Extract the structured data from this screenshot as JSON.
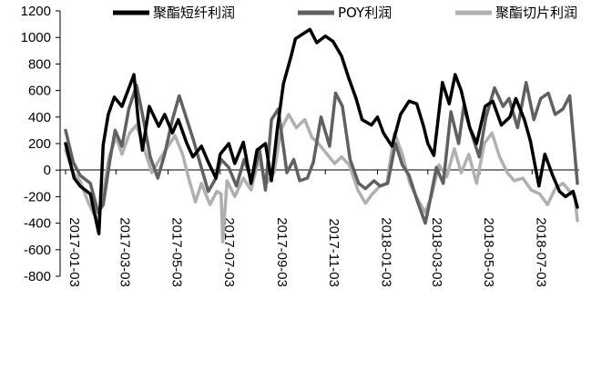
{
  "chart_data": {
    "type": "line",
    "title": "",
    "xlabel": "",
    "ylabel": "",
    "ylim": [
      -800,
      1200
    ],
    "yticks": [
      -800,
      -600,
      -400,
      -200,
      0,
      200,
      400,
      600,
      800,
      1000,
      1200
    ],
    "x_tick_labels": [
      "2017-01-03",
      "2017-03-03",
      "2017-05-03",
      "2017-07-03",
      "2017-09-03",
      "2017-11-03",
      "2018-01-03",
      "2018-03-03",
      "2018-05-03",
      "2018-07-03"
    ],
    "x_range": [
      "2017-01-03",
      "2018-08-25"
    ],
    "grid": false,
    "legend_position": "top",
    "series": [
      {
        "name": "聚酯短纤利润",
        "color": "#000000",
        "x": [
          "2017-01-03",
          "2017-01-13",
          "2017-01-20",
          "2017-02-01",
          "2017-02-11",
          "2017-02-16",
          "2017-02-22",
          "2017-03-01",
          "2017-03-10",
          "2017-03-17",
          "2017-03-24",
          "2017-03-29",
          "2017-04-03",
          "2017-04-11",
          "2017-04-22",
          "2017-04-29",
          "2017-05-08",
          "2017-05-15",
          "2017-05-25",
          "2017-06-01",
          "2017-06-11",
          "2017-06-19",
          "2017-06-28",
          "2017-07-03",
          "2017-07-13",
          "2017-07-20",
          "2017-07-30",
          "2017-08-08",
          "2017-08-15",
          "2017-08-25",
          "2017-09-01",
          "2017-09-08",
          "2017-09-15",
          "2017-09-24",
          "2017-09-29",
          "2017-10-06",
          "2017-10-16",
          "2017-10-24",
          "2017-11-03",
          "2017-11-12",
          "2017-11-22",
          "2017-11-30",
          "2017-12-09",
          "2017-12-16",
          "2017-12-27",
          "2018-01-03",
          "2018-01-10",
          "2018-01-20",
          "2018-01-30",
          "2018-02-09",
          "2018-02-18",
          "2018-02-26",
          "2018-03-03",
          "2018-03-10",
          "2018-03-20",
          "2018-03-28",
          "2018-04-04",
          "2018-04-11",
          "2018-04-21",
          "2018-04-29",
          "2018-05-09",
          "2018-05-18",
          "2018-05-28",
          "2018-06-07",
          "2018-06-14",
          "2018-06-24",
          "2018-07-01",
          "2018-07-11",
          "2018-07-18",
          "2018-07-27",
          "2018-08-04",
          "2018-08-11",
          "2018-08-20",
          "2018-08-25"
        ],
        "values": [
          200,
          -60,
          -120,
          -180,
          -480,
          190,
          420,
          550,
          480,
          600,
          720,
          380,
          150,
          480,
          330,
          420,
          280,
          380,
          200,
          100,
          180,
          60,
          -60,
          120,
          200,
          50,
          210,
          -100,
          150,
          200,
          -80,
          320,
          650,
          860,
          990,
          1020,
          1060,
          960,
          1010,
          970,
          860,
          700,
          540,
          380,
          340,
          400,
          280,
          180,
          420,
          520,
          500,
          330,
          200,
          110,
          660,
          500,
          720,
          600,
          320,
          200,
          480,
          520,
          340,
          400,
          540,
          380,
          220,
          -120,
          120,
          -40,
          -160,
          -200,
          -160,
          -280
        ]
      },
      {
        "name": "POY利润",
        "color": "#606060",
        "x": [
          "2017-01-03",
          "2017-01-12",
          "2017-01-20",
          "2017-02-01",
          "2017-02-10",
          "2017-02-16",
          "2017-02-24",
          "2017-03-02",
          "2017-03-10",
          "2017-03-18",
          "2017-03-27",
          "2017-04-03",
          "2017-04-12",
          "2017-04-21",
          "2017-04-29",
          "2017-05-08",
          "2017-05-16",
          "2017-05-24",
          "2017-06-02",
          "2017-06-10",
          "2017-06-19",
          "2017-06-28",
          "2017-07-04",
          "2017-07-13",
          "2017-07-22",
          "2017-07-31",
          "2017-08-09",
          "2017-08-18",
          "2017-08-25",
          "2017-09-01",
          "2017-09-09",
          "2017-09-19",
          "2017-09-27",
          "2017-10-04",
          "2017-10-13",
          "2017-10-20",
          "2017-10-29",
          "2017-11-08",
          "2017-11-15",
          "2017-11-23",
          "2017-12-02",
          "2017-12-12",
          "2017-12-20",
          "2017-12-30",
          "2018-01-06",
          "2018-01-15",
          "2018-01-24",
          "2018-02-01",
          "2018-02-09",
          "2018-02-18",
          "2018-02-28",
          "2018-03-04",
          "2018-03-13",
          "2018-03-21",
          "2018-03-30",
          "2018-04-08",
          "2018-04-14",
          "2018-04-22",
          "2018-05-02",
          "2018-05-10",
          "2018-05-20",
          "2018-05-30",
          "2018-06-06",
          "2018-06-16",
          "2018-06-26",
          "2018-07-05",
          "2018-07-13",
          "2018-07-22",
          "2018-07-30",
          "2018-08-08",
          "2018-08-16",
          "2018-08-21",
          "2018-08-25"
        ],
        "values": [
          300,
          60,
          -40,
          -100,
          -320,
          -260,
          80,
          300,
          180,
          460,
          640,
          420,
          100,
          -60,
          120,
          380,
          560,
          400,
          220,
          40,
          -160,
          -60,
          80,
          20,
          -120,
          80,
          -80,
          150,
          -150,
          380,
          460,
          -20,
          80,
          -80,
          -60,
          60,
          400,
          180,
          580,
          480,
          80,
          -100,
          -140,
          -80,
          -120,
          -100,
          200,
          40,
          -40,
          -220,
          -400,
          -280,
          20,
          -100,
          440,
          200,
          480,
          300,
          100,
          400,
          620,
          480,
          540,
          320,
          660,
          380,
          540,
          580,
          420,
          460,
          560,
          200,
          -100
        ]
      },
      {
        "name": "聚酯切片利润",
        "color": "#b0b0b0",
        "x": [
          "2017-01-03",
          "2017-01-12",
          "2017-01-20",
          "2017-01-30",
          "2017-02-09",
          "2017-02-16",
          "2017-02-23",
          "2017-03-03",
          "2017-03-10",
          "2017-03-19",
          "2017-03-27",
          "2017-04-04",
          "2017-04-14",
          "2017-04-23",
          "2017-05-03",
          "2017-05-11",
          "2017-05-20",
          "2017-05-27",
          "2017-06-04",
          "2017-06-11",
          "2017-06-21",
          "2017-06-29",
          "2017-07-04",
          "2017-07-06",
          "2017-07-11",
          "2017-07-20",
          "2017-07-30",
          "2017-08-08",
          "2017-08-17",
          "2017-08-26",
          "2017-09-04",
          "2017-09-12",
          "2017-09-21",
          "2017-09-30",
          "2017-10-10",
          "2017-10-18",
          "2017-10-26",
          "2017-11-05",
          "2017-11-14",
          "2017-11-22",
          "2017-12-01",
          "2017-12-11",
          "2017-12-20",
          "2017-12-28",
          "2018-01-06",
          "2018-01-14",
          "2018-01-23",
          "2018-02-01",
          "2018-02-10",
          "2018-02-19",
          "2018-02-28",
          "2018-03-07",
          "2018-03-16",
          "2018-03-25",
          "2018-04-03",
          "2018-04-11",
          "2018-04-20",
          "2018-04-29",
          "2018-05-08",
          "2018-05-17",
          "2018-05-26",
          "2018-06-04",
          "2018-06-12",
          "2018-06-22",
          "2018-07-02",
          "2018-07-12",
          "2018-07-21",
          "2018-07-30",
          "2018-08-08",
          "2018-08-16",
          "2018-08-22",
          "2018-08-25"
        ],
        "values": [
          150,
          -20,
          -80,
          -250,
          -380,
          -180,
          100,
          250,
          120,
          280,
          340,
          180,
          -20,
          80,
          180,
          260,
          120,
          -60,
          -240,
          -100,
          -260,
          -160,
          -180,
          -540,
          -80,
          -200,
          -60,
          -150,
          80,
          -100,
          -20,
          300,
          420,
          320,
          380,
          250,
          200,
          120,
          50,
          100,
          40,
          -150,
          -250,
          -180,
          -120,
          -100,
          280,
          120,
          -100,
          -220,
          -320,
          -200,
          40,
          -50,
          160,
          -20,
          120,
          -100,
          200,
          280,
          100,
          -20,
          -80,
          -60,
          -150,
          -180,
          -260,
          -140,
          -100,
          -160,
          -200,
          -380
        ]
      }
    ]
  }
}
